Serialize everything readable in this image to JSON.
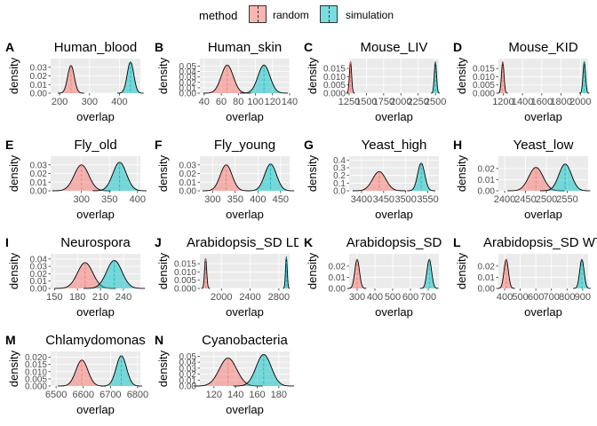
{
  "legend": {
    "title": "method",
    "items": [
      "random",
      "simulation"
    ]
  },
  "colors": {
    "random": "#F8766D",
    "simulation": "#00BFC4",
    "panel_bg": "#EBEBEB",
    "grid": "#FFFFFF"
  },
  "xlabel": "overlap",
  "ylabel": "density",
  "chart_data": [
    {
      "tag": "A",
      "title": "Human_blood",
      "type": "area",
      "xticks": [
        "200",
        "300",
        "400"
      ],
      "yticks": [
        "0.00",
        "0.01",
        "0.02",
        "0.03"
      ],
      "xlim": [
        170,
        470
      ],
      "ylim": [
        0,
        0.04
      ],
      "series": [
        {
          "name": "random",
          "mean": 238,
          "sd": 11,
          "peak": 0.032
        },
        {
          "name": "simulation",
          "mean": 437,
          "sd": 11,
          "peak": 0.036
        }
      ]
    },
    {
      "tag": "B",
      "title": "Human_skin",
      "type": "area",
      "xticks": [
        "40",
        "60",
        "80",
        "100",
        "120",
        "140"
      ],
      "yticks": [
        "0.00",
        "0.01",
        "0.02",
        "0.03",
        "0.04",
        "0.05"
      ],
      "xlim": [
        35,
        140
      ],
      "ylim": [
        0,
        0.064
      ],
      "series": [
        {
          "name": "random",
          "mean": 67,
          "sd": 7,
          "peak": 0.052
        },
        {
          "name": "simulation",
          "mean": 110,
          "sd": 7,
          "peak": 0.052
        }
      ]
    },
    {
      "tag": "C",
      "title": "Mouse_LIV",
      "type": "area",
      "xticks": [
        "1250",
        "1500",
        "1750",
        "2000",
        "2250",
        "2500"
      ],
      "yticks": [
        "0.000",
        "0.005",
        "0.010",
        "0.015"
      ],
      "xlim": [
        1250,
        2550
      ],
      "ylim": [
        0,
        0.021
      ],
      "series": [
        {
          "name": "random",
          "mean": 1270,
          "sd": 16,
          "peak": 0.019
        },
        {
          "name": "simulation",
          "mean": 2500,
          "sd": 16,
          "peak": 0.019
        }
      ]
    },
    {
      "tag": "D",
      "title": "Mouse_KID",
      "type": "area",
      "xticks": [
        "1200",
        "1400",
        "1600",
        "1800",
        "2000"
      ],
      "yticks": [
        "0.000",
        "0.005",
        "0.010",
        "0.015"
      ],
      "xlim": [
        1150,
        2080
      ],
      "ylim": [
        0,
        0.021
      ],
      "series": [
        {
          "name": "random",
          "mean": 1195,
          "sd": 13,
          "peak": 0.019
        },
        {
          "name": "simulation",
          "mean": 2040,
          "sd": 13,
          "peak": 0.019
        }
      ]
    },
    {
      "tag": "E",
      "title": "Fly_old",
      "type": "area",
      "xticks": [
        "300",
        "350",
        "400"
      ],
      "yticks": [
        "0.00",
        "0.01",
        "0.02",
        "0.03"
      ],
      "xlim": [
        245,
        405
      ],
      "ylim": [
        0,
        0.04
      ],
      "series": [
        {
          "name": "random",
          "mean": 300,
          "sd": 13,
          "peak": 0.03
        },
        {
          "name": "simulation",
          "mean": 368,
          "sd": 12,
          "peak": 0.033
        }
      ]
    },
    {
      "tag": "F",
      "title": "Fly_young",
      "type": "area",
      "xticks": [
        "300",
        "350",
        "400",
        "450"
      ],
      "yticks": [
        "0.00",
        "0.01",
        "0.02",
        "0.03"
      ],
      "xlim": [
        272,
        470
      ],
      "ylim": [
        0,
        0.04
      ],
      "series": [
        {
          "name": "random",
          "mean": 330,
          "sd": 13,
          "peak": 0.03
        },
        {
          "name": "simulation",
          "mean": 428,
          "sd": 13,
          "peak": 0.031
        }
      ]
    },
    {
      "tag": "G",
      "title": "Yeast_high",
      "type": "area",
      "xticks": [
        "3400",
        "3450",
        "3500",
        "3550"
      ],
      "yticks": [
        "0.0",
        "0.1",
        "0.2",
        "0.3",
        "0.4"
      ],
      "xlim": [
        3372,
        3575
      ],
      "ylim": [
        0,
        0.45
      ],
      "series": [
        {
          "name": "random",
          "mean": 3440,
          "sd": 15,
          "peak": 0.25
        },
        {
          "name": "simulation",
          "mean": 3535,
          "sd": 8,
          "peak": 0.36
        }
      ]
    },
    {
      "tag": "H",
      "title": "Yeast_low",
      "type": "area",
      "xticks": [
        "2400",
        "2450",
        "2500",
        "2550"
      ],
      "yticks": [
        "0.00",
        "0.01",
        "0.02"
      ],
      "xlim": [
        2385,
        2600
      ],
      "ylim": [
        0,
        0.031
      ],
      "series": [
        {
          "name": "random",
          "mean": 2475,
          "sd": 17,
          "peak": 0.021
        },
        {
          "name": "simulation",
          "mean": 2545,
          "sd": 15,
          "peak": 0.024
        }
      ]
    },
    {
      "tag": "I",
      "title": "Neurospora",
      "type": "area",
      "xticks": [
        "150",
        "180",
        "210",
        "240"
      ],
      "yticks": [
        "0.00",
        "0.01",
        "0.02",
        "0.03",
        "0.04"
      ],
      "xlim": [
        145,
        262
      ],
      "ylim": [
        0,
        0.047
      ],
      "series": [
        {
          "name": "random",
          "mean": 190,
          "sd": 10,
          "peak": 0.035
        },
        {
          "name": "simulation",
          "mean": 228,
          "sd": 10,
          "peak": 0.038
        }
      ]
    },
    {
      "tag": "J",
      "title": "Arabidopsis_SD LD",
      "type": "area",
      "xticks": [
        "2000",
        "2400",
        "2800"
      ],
      "yticks": [
        "0.000",
        "0.005",
        "0.010",
        "0.015"
      ],
      "xlim": [
        1700,
        2950
      ],
      "ylim": [
        0,
        0.021
      ],
      "series": [
        {
          "name": "random",
          "mean": 1780,
          "sd": 15,
          "peak": 0.018
        },
        {
          "name": "simulation",
          "mean": 2905,
          "sd": 12,
          "peak": 0.019
        }
      ]
    },
    {
      "tag": "K",
      "title": "Arabidopsis_SD",
      "type": "area",
      "xticks": [
        "300",
        "400",
        "500",
        "600",
        "700"
      ],
      "yticks": [
        "0.00",
        "0.01",
        "0.02"
      ],
      "xlim": [
        255,
        760
      ],
      "ylim": [
        0,
        0.031
      ],
      "series": [
        {
          "name": "random",
          "mean": 300,
          "sd": 13,
          "peak": 0.026
        },
        {
          "name": "simulation",
          "mean": 706,
          "sd": 13,
          "peak": 0.026
        }
      ]
    },
    {
      "tag": "L",
      "title": "Arabidopsis_SD WT",
      "type": "area",
      "xticks": [
        "400",
        "500",
        "600",
        "700",
        "800",
        "900"
      ],
      "yticks": [
        "0.00",
        "0.01",
        "0.02"
      ],
      "xlim": [
        360,
        935
      ],
      "ylim": [
        0,
        0.031
      ],
      "series": [
        {
          "name": "random",
          "mean": 410,
          "sd": 14,
          "peak": 0.026
        },
        {
          "name": "simulation",
          "mean": 895,
          "sd": 14,
          "peak": 0.026
        }
      ]
    },
    {
      "tag": "M",
      "title": "Chlamydomonas",
      "type": "area",
      "xticks": [
        "6500",
        "6600",
        "6700",
        "6800"
      ],
      "yticks": [
        "0.000",
        "0.005",
        "0.010",
        "0.015",
        "0.020"
      ],
      "xlim": [
        6480,
        6810
      ],
      "ylim": [
        0,
        0.024
      ],
      "series": [
        {
          "name": "random",
          "mean": 6595,
          "sd": 22,
          "peak": 0.018
        },
        {
          "name": "simulation",
          "mean": 6740,
          "sd": 19,
          "peak": 0.021
        }
      ]
    },
    {
      "tag": "N",
      "title": "Cyanobacteria",
      "type": "area",
      "xticks": [
        "120",
        "140",
        "160",
        "180"
      ],
      "yticks": [
        "0.00",
        "0.01",
        "0.02",
        "0.03",
        "0.04",
        "0.05"
      ],
      "xlim": [
        107,
        190
      ],
      "ylim": [
        0,
        0.058
      ],
      "series": [
        {
          "name": "random",
          "mean": 133,
          "sd": 8,
          "peak": 0.047
        },
        {
          "name": "simulation",
          "mean": 166,
          "sd": 7,
          "peak": 0.053
        }
      ]
    }
  ]
}
